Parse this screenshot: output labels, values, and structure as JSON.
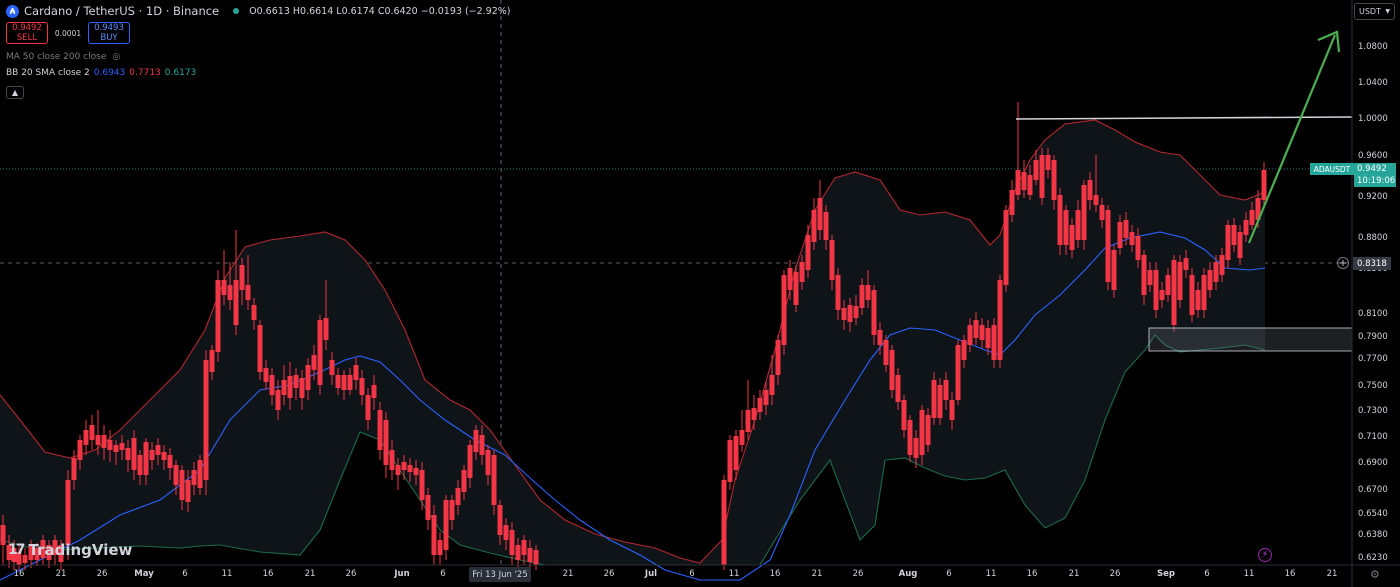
{
  "header": {
    "symbol_title": "Cardano / TetherUS · 1D · Binance",
    "ohlc": "O0.6613 H0.6614 L0.6174 C0.6420 −0.0193 (−2.92%)"
  },
  "trade": {
    "sell_price": "0.9492",
    "sell_label": "SELL",
    "spread": "0.0001",
    "buy_price": "0.9493",
    "buy_label": "BUY"
  },
  "indicators": {
    "ma_label": "MA 50 close 200 close",
    "bb_label": "BB 20 SMA close 2",
    "bb_basis": "0.6943",
    "bb_upper": "0.7713",
    "bb_lower": "0.6173"
  },
  "currency_button": "USDT",
  "branding": "TradingView",
  "price_tag": {
    "symbol": "ADAUSDT",
    "price": "0.9492",
    "countdown": "10:19:06"
  },
  "crosshair_price": "0.8318",
  "highlight_date": "Fri 13 Jun '25",
  "chart_data": {
    "type": "candlestick",
    "symbol": "ADAUSDT",
    "timeframe": "1D",
    "y_ticks": [
      "1.0800",
      "1.0400",
      "1.0000",
      "0.9600",
      "0.9200",
      "0.8800",
      "0.8500",
      "0.8100",
      "0.7900",
      "0.7700",
      "0.7500",
      "0.7300",
      "0.7100",
      "0.6900",
      "0.6700",
      "0.6540",
      "0.6380",
      "0.6230"
    ],
    "x_ticks": [
      "16",
      "21",
      "26",
      "May",
      "6",
      "11",
      "16",
      "21",
      "26",
      "Jun",
      "6",
      "11",
      "16",
      "21",
      "26",
      "Jul",
      "6",
      "11",
      "16",
      "21",
      "26",
      "Aug",
      "6",
      "11",
      "16",
      "21",
      "26",
      "Sep",
      "6",
      "11",
      "16",
      "21"
    ],
    "x_bold_ticks": [
      "May",
      "Jun",
      "Jul",
      "Aug",
      "Sep"
    ],
    "resistance_level": 1.0,
    "support_zone": [
      0.7815,
      0.7985
    ],
    "colors": {
      "up": "#4caf50",
      "down": "#f23645",
      "bb_upper": "#b2282e",
      "bb_lower": "#1b6b4a",
      "bb_basis": "#2962ff",
      "arrow": "#4caf50",
      "resistance": "#d1d4dc"
    }
  }
}
